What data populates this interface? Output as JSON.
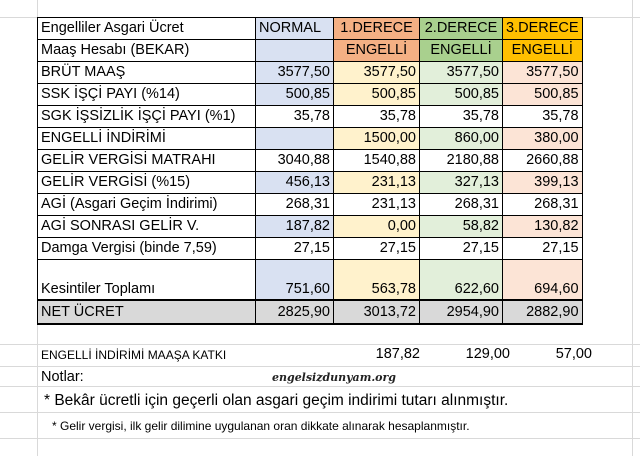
{
  "header": {
    "title_left": "Engelliler Asgari Ücret",
    "subtitle_left": "Maaş Hesabı (BEKAR)",
    "normal": "NORMAL",
    "d1_top": "1.DERECE",
    "d1_bottom": "ENGELLİ",
    "d2_top": "2.DERECE",
    "d2_bottom": "ENGELLİ",
    "d3_top": "3.DERECE",
    "d3_bottom": "ENGELLİ"
  },
  "rows": [
    {
      "label": "BRÜT MAAŞ",
      "normal": "3577,50",
      "d1": "3577,50",
      "d2": "3577,50",
      "d3": "3577,50"
    },
    {
      "label": "SSK İŞÇİ PAYI (%14)",
      "normal": "500,85",
      "d1": "500,85",
      "d2": "500,85",
      "d3": "500,85"
    },
    {
      "label": "SGK İŞSİZLİK İŞÇİ PAYI (%1)",
      "normal": "35,78",
      "d1": "35,78",
      "d2": "35,78",
      "d3": "35,78"
    },
    {
      "label": "ENGELLİ İNDİRİMİ",
      "normal": "",
      "d1": "1500,00",
      "d2": "860,00",
      "d3": "380,00"
    },
    {
      "label": "GELİR VERGİSİ MATRAHI",
      "normal": "3040,88",
      "d1": "1540,88",
      "d2": "2180,88",
      "d3": "2660,88"
    },
    {
      "label": "GELİR VERGİSİ (%15)",
      "normal": "456,13",
      "d1": "231,13",
      "d2": "327,13",
      "d3": "399,13"
    },
    {
      "label": "AGİ (Asgari Geçim İndirimi)",
      "normal": "268,31",
      "d1": "231,13",
      "d2": "268,31",
      "d3": "268,31"
    },
    {
      "label": "AGİ SONRASI GELİR V.",
      "normal": "187,82",
      "d1": "0,00",
      "d2": "58,82",
      "d3": "130,82"
    },
    {
      "label": "Damga Vergisi (binde 7,59)",
      "normal": "27,15",
      "d1": "27,15",
      "d2": "27,15",
      "d3": "27,15"
    },
    {
      "label": "Kesintiler Toplamı",
      "normal": "751,60",
      "d1": "563,78",
      "d2": "622,60",
      "d3": "694,60"
    }
  ],
  "net": {
    "label": "NET ÜCRET",
    "normal": "2825,90",
    "d1": "3013,72",
    "d2": "2954,90",
    "d3": "2882,90"
  },
  "contribution": {
    "label": "ENGELLİ İNDİRİMİ MAAŞA KATKI",
    "d1": "187,82",
    "d2": "129,00",
    "d3": "57,00"
  },
  "notes": {
    "label": "Notlar:",
    "watermark": "engelsizdunyam.org",
    "note1": "* Bekâr ücretli için geçerli olan asgari geçim indirimi tutarı alınmıştır.",
    "note2": "* Gelir vergisi, ilk gelir dilimine uygulanan oran dikkate alınarak hesaplanmıştır."
  },
  "colors": {
    "normal_fill": "#d9e1f2",
    "d1_fill": "#fff2cc",
    "d1_header": "#f4b084",
    "d2_fill": "#e2efda",
    "d2_header": "#a9d08e",
    "d3_fill": "#fce4d6",
    "d3_header": "#ffc000",
    "net_fill": "#d9d9d9"
  }
}
